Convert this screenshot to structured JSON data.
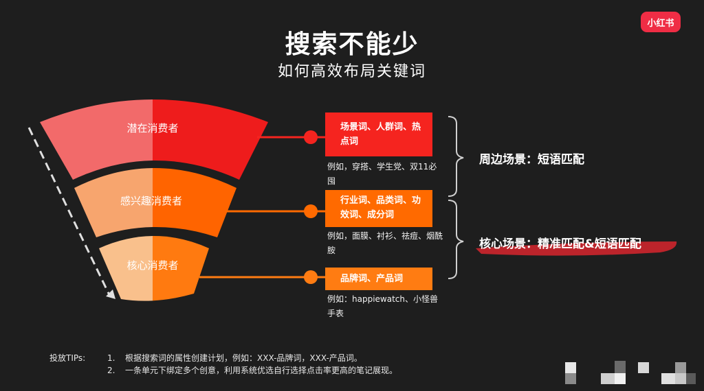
{
  "logo": "小红书",
  "title": "搜索不能少",
  "subtitle": "如何高效布局关键词",
  "funnel": {
    "layers": [
      {
        "label": "潜在消费者",
        "color_left": "#f26a6a",
        "color_right": "#ee1c1c"
      },
      {
        "label": "感兴趣消费者",
        "color_left": "#f7a56e",
        "color_right": "#ff6400"
      },
      {
        "label": "核心消费者",
        "color_left": "#f9c08c",
        "color_right": "#ff7a10"
      }
    ]
  },
  "keywords": [
    {
      "box": "场景词、人群词、热点词",
      "example": "例如，穿搭、学生党、双11必囤",
      "color": "#f5241f"
    },
    {
      "box": "行业词、品类词、功效词、成分词",
      "example": "例如，面膜、衬衫、祛痘、烟酰胺",
      "color": "#ff6a00"
    },
    {
      "box": "品牌词、产品词",
      "example": "例如：happiewatch、小怪兽手表",
      "color": "#ff7c12"
    }
  ],
  "scenes": [
    {
      "label": "周边场景：短语匹配"
    },
    {
      "label": "核心场景：精准匹配&短语匹配"
    }
  ],
  "tips": {
    "label": "投放TIPs:",
    "items": [
      {
        "num": "1.",
        "text": "根据搜索词的属性创建计划，例如：XXX-品牌词，XXX-产品词。"
      },
      {
        "num": "2.",
        "text": "一条单元下绑定多个创意，利用系统优选自行选择点击率更高的笔记展现。"
      }
    ]
  }
}
